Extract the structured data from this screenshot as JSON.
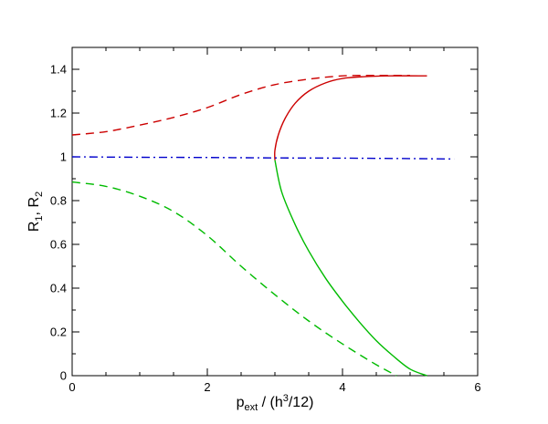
{
  "chart_data": {
    "type": "line",
    "title": "",
    "xlabel": {
      "base": "p",
      "sub": "ext",
      "rest": " / (h",
      "sup": "3",
      "tail": "/12)"
    },
    "ylabel": {
      "r1": "R",
      "s1": "1",
      "mid": ", R",
      "s2": "2"
    },
    "xlim": [
      0,
      6
    ],
    "ylim": [
      0,
      1.5
    ],
    "xticks": [
      0,
      2,
      4,
      6
    ],
    "yticks": [
      0,
      0.2,
      0.4,
      0.6,
      0.8,
      1,
      1.2,
      1.4
    ],
    "xtick_labels": [
      "0",
      "2",
      "4",
      "6"
    ],
    "ytick_labels": [
      "0",
      "0.2",
      "0.4",
      "0.6",
      "0.8",
      "1",
      "1.2",
      "1.4"
    ],
    "grid": false,
    "series": [
      {
        "style": "dashed",
        "color": "#cc0000",
        "x": [
          0,
          0.5,
          1.0,
          1.5,
          2.0,
          2.5,
          3.0,
          3.5,
          4.0,
          4.5,
          5.0
        ],
        "y": [
          1.1,
          1.115,
          1.145,
          1.18,
          1.225,
          1.285,
          1.33,
          1.355,
          1.37,
          1.372,
          1.372
        ]
      },
      {
        "style": "solid",
        "color": "#cc0000",
        "x": [
          3.0,
          3.0,
          3.05,
          3.15,
          3.3,
          3.5,
          3.75,
          4.0,
          4.3,
          4.7,
          5.25
        ],
        "y": [
          0.985,
          1.03,
          1.1,
          1.175,
          1.245,
          1.3,
          1.338,
          1.358,
          1.366,
          1.37,
          1.37
        ]
      },
      {
        "style": "dashdot",
        "color": "#0000cc",
        "x": [
          0,
          1,
          2,
          3,
          4,
          5,
          5.65
        ],
        "y": [
          1.0,
          0.998,
          0.997,
          0.995,
          0.994,
          0.992,
          0.99
        ]
      },
      {
        "style": "dashed",
        "color": "#00bb00",
        "x": [
          0,
          0.5,
          1.0,
          1.5,
          2.0,
          2.5,
          3.0,
          3.5,
          4.0,
          4.5,
          4.8
        ],
        "y": [
          0.885,
          0.865,
          0.82,
          0.75,
          0.64,
          0.5,
          0.37,
          0.25,
          0.145,
          0.05,
          0.0
        ]
      },
      {
        "style": "solid",
        "color": "#00bb00",
        "x": [
          3.0,
          3.1,
          3.3,
          3.5,
          3.75,
          4.0,
          4.25,
          4.5,
          4.75,
          5.0,
          5.25
        ],
        "y": [
          0.985,
          0.84,
          0.69,
          0.57,
          0.445,
          0.34,
          0.245,
          0.16,
          0.09,
          0.03,
          0.0
        ]
      }
    ]
  }
}
